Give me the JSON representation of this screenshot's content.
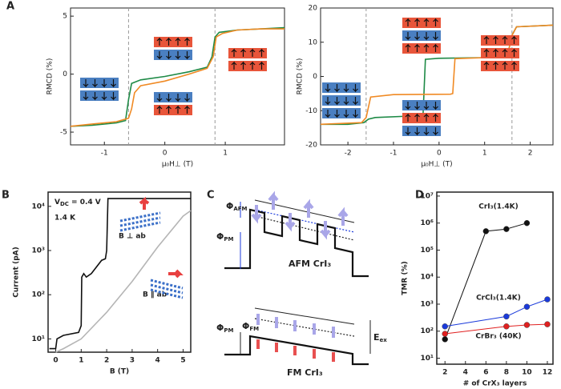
{
  "panel_labels": [
    "A",
    "B",
    "C",
    "D"
  ],
  "chart_data": [
    {
      "type": "line",
      "xlabel": "μ₀H⊥ (T)",
      "ylabel": "RMCD (%)",
      "xlim": [
        -1.56,
        1.98
      ],
      "ylim": [
        -6.1,
        5.7
      ],
      "xticks": [
        -1,
        0,
        1
      ],
      "yticks": [
        -5,
        0,
        5
      ],
      "vlines": [
        -0.6,
        0.83
      ],
      "series": [
        {
          "color": "#1e8a46",
          "x": [
            -1.56,
            -1.2,
            -0.8,
            -0.65,
            -0.6,
            -0.55,
            -0.4,
            0,
            0.4,
            0.7,
            0.78,
            0.83,
            0.9,
            1.2,
            1.6,
            1.98
          ],
          "values": [
            -4.5,
            -4.4,
            -4.2,
            -4.0,
            -2.2,
            -0.8,
            -0.5,
            -0.2,
            0.2,
            0.6,
            1.5,
            3.2,
            3.6,
            3.8,
            3.9,
            4.0
          ]
        },
        {
          "color": "#f08a24",
          "x": [
            1.98,
            1.6,
            1.2,
            0.95,
            0.85,
            0.8,
            0.7,
            0.4,
            0,
            -0.4,
            -0.5,
            -0.55,
            -0.6,
            -0.8,
            -1.2,
            -1.56
          ],
          "values": [
            3.9,
            3.9,
            3.8,
            3.5,
            3.2,
            1.5,
            0.5,
            0,
            -0.6,
            -1.0,
            -1.6,
            -3.0,
            -3.8,
            -4.1,
            -4.3,
            -4.5
          ]
        }
      ]
    },
    {
      "type": "line",
      "xlabel": "μ₀H⊥ (T)",
      "ylabel": "RMCD (%)",
      "xlim": [
        -2.6,
        2.5
      ],
      "ylim": [
        -20,
        20
      ],
      "xticks": [
        -2,
        -1,
        0,
        1,
        2
      ],
      "yticks": [
        -20,
        -10,
        0,
        10,
        20
      ],
      "vlines": [
        -1.6,
        1.6
      ],
      "series": [
        {
          "color": "#1e8a46",
          "x": [
            -2.6,
            -2,
            -1.65,
            -1.55,
            -1.4,
            -0.5,
            -0.35,
            -0.3,
            0,
            1,
            1.5,
            1.6,
            1.7,
            2.5
          ],
          "values": [
            -14,
            -14,
            -13.5,
            -12.5,
            -12,
            -11.5,
            -11,
            5,
            5.3,
            5.5,
            6,
            12,
            14.5,
            15
          ]
        },
        {
          "color": "#f08a24",
          "x": [
            2.5,
            1.7,
            1.6,
            1.5,
            1,
            0.35,
            0.3,
            0.25,
            -1,
            -1.5,
            -1.6,
            -1.7,
            -2.6
          ],
          "values": [
            15,
            14.5,
            12,
            6,
            5.5,
            5.2,
            -5,
            -5.2,
            -5.3,
            -6,
            -12,
            -13.5,
            -14
          ]
        }
      ]
    },
    {
      "type": "line",
      "xlabel": "B (T)",
      "ylabel": "Current (pA)",
      "log_y": true,
      "xlim": [
        -0.3,
        5.3
      ],
      "ylim": [
        5,
        21000
      ],
      "xticks": [
        0,
        1,
        2,
        3,
        4,
        5
      ],
      "yticks": [
        {
          "value": 10,
          "label": "10¹"
        },
        {
          "value": 100,
          "label": "10²"
        },
        {
          "value": 1000,
          "label": "10³"
        },
        {
          "value": 10000,
          "label": "10⁴"
        }
      ],
      "vdc": {
        "symbol": "V",
        "sub": "DC",
        "text": " = 0.4 V"
      },
      "annotations": [
        "1.4 K",
        "B ⊥ ab",
        "B ∥ ab"
      ],
      "series": [
        {
          "color": "#111111",
          "x": [
            -0.25,
            0,
            0.05,
            0.3,
            0.9,
            1.0,
            1.02,
            1.1,
            1.2,
            1.4,
            1.8,
            1.95,
            2.0,
            2.05,
            5.3
          ],
          "values": [
            6,
            6,
            10,
            12,
            14,
            20,
            250,
            300,
            250,
            300,
            600,
            650,
            1000,
            15000,
            15000
          ]
        },
        {
          "color": "#b5b5b5",
          "x": [
            0,
            0.3,
            1,
            2,
            3,
            4,
            5,
            5.3
          ],
          "values": [
            5,
            6,
            10,
            40,
            200,
            1200,
            6000,
            8000
          ]
        }
      ]
    },
    {
      "type": "line",
      "xlabel": "# of CrX₃ layers",
      "ylabel": "TMR (%)",
      "log_y": true,
      "markers": true,
      "xlim": [
        1.2,
        12.55
      ],
      "ylim": [
        6,
        14000000
      ],
      "xticks": [
        2,
        4,
        6,
        8,
        10,
        12
      ],
      "yticks": [
        {
          "value": 10,
          "label": "10¹"
        },
        {
          "value": 100,
          "label": "10²"
        },
        {
          "value": 1000,
          "label": "10³"
        },
        {
          "value": 10000,
          "label": "10⁴"
        },
        {
          "value": 100000,
          "label": "10⁵"
        },
        {
          "value": 1000000,
          "label": "10⁶"
        },
        {
          "value": 10000000,
          "label": "10⁷"
        }
      ],
      "series": [
        {
          "name": "CrI₃(1.4K)",
          "color": "#111111",
          "x": [
            2,
            6,
            8,
            10
          ],
          "values": [
            50,
            500000,
            600000,
            1000000
          ]
        },
        {
          "name": "CrCl₃(1.4K)",
          "color": "#1a3adb",
          "x": [
            2,
            8,
            10,
            12
          ],
          "values": [
            150,
            350,
            800,
            1500
          ]
        },
        {
          "name": "CrBr₃ (40K)",
          "color": "#e02020",
          "x": [
            2,
            8,
            10,
            12
          ],
          "values": [
            80,
            150,
            170,
            180
          ]
        }
      ]
    }
  ],
  "diagram": {
    "phi_afm": {
      "symbol": "Φ",
      "sub": "AFM"
    },
    "phi_pm_top": {
      "symbol": "Φ",
      "sub": "PM"
    },
    "afm_label": "AFM CrI₃",
    "phi_pm_bottom": {
      "symbol": "Φ",
      "sub": "PM"
    },
    "phi_fm": {
      "symbol": "Φ",
      "sub": "FM"
    },
    "e_ex": {
      "symbol": "E",
      "sub": "ex"
    },
    "fm_label": "FM CrI₃"
  }
}
